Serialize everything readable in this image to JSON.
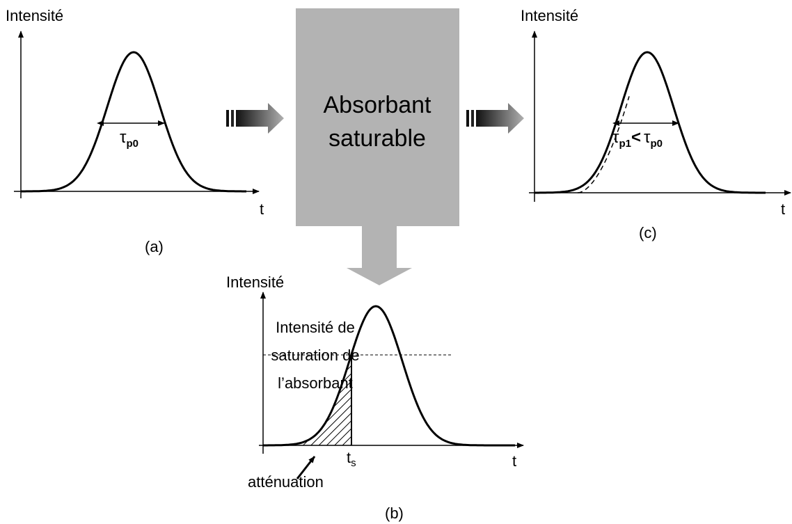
{
  "panel_a": {
    "y_label": "Intensité",
    "x_label": "t",
    "caption": "(a)",
    "width_label": {
      "symbol": "τ",
      "subscript": "p0"
    }
  },
  "absorber": {
    "lines": [
      "Absorbant",
      "saturable"
    ]
  },
  "panel_c": {
    "y_label": "Intensité",
    "x_label": "t",
    "caption": "(c)",
    "width_label": {
      "symbol1": "τ",
      "subscript1": "p1",
      "relation": "<",
      "symbol2": "τ",
      "subscript2": "p0"
    }
  },
  "panel_b": {
    "y_label": "Intensité",
    "x_label": "t",
    "caption": "(b)",
    "threshold_label": [
      "Intensité de",
      "saturation de",
      "l’absorbant"
    ],
    "ts": {
      "symbol": "t",
      "subscript": "s"
    },
    "attenuation": "atténuation"
  }
}
